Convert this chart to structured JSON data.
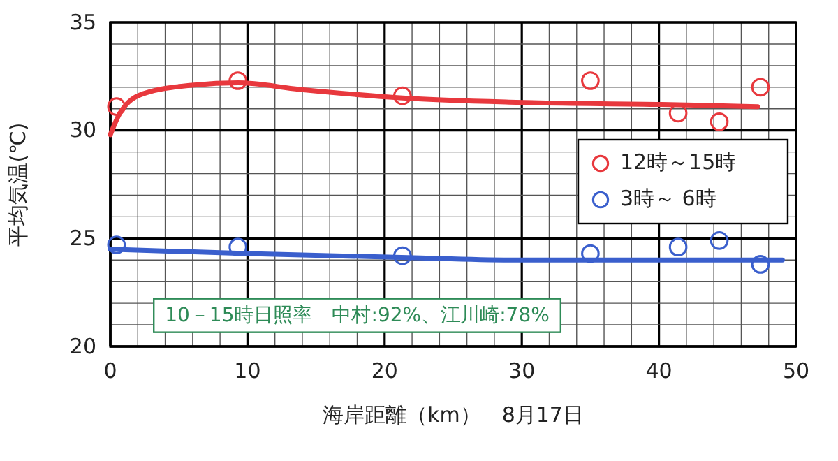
{
  "chart_data": {
    "type": "scatter",
    "xlabel": "海岸距離（km）　8月17日",
    "ylabel": "平均気温(℃)",
    "xlim": [
      0,
      50
    ],
    "ylim": [
      20,
      35
    ],
    "xticks": [
      0,
      {
        "value": 2,
        "label": null
      },
      {
        "value": 4,
        "label": null
      },
      {
        "value": 6,
        "label": null
      },
      {
        "value": 8,
        "label": null
      },
      10,
      {
        "value": 12,
        "label": null
      },
      {
        "value": 14,
        "label": null
      },
      {
        "value": 16,
        "label": null
      },
      {
        "value": 18,
        "label": null
      },
      20,
      {
        "value": 22,
        "label": null
      },
      {
        "value": 24,
        "label": null
      },
      {
        "value": 26,
        "label": null
      },
      {
        "value": 28,
        "label": null
      },
      30,
      {
        "value": 32,
        "label": null
      },
      {
        "value": 34,
        "label": null
      },
      {
        "value": 36,
        "label": null
      },
      {
        "value": 38,
        "label": null
      },
      40,
      {
        "value": 42,
        "label": null
      },
      {
        "value": 44,
        "label": null
      },
      {
        "value": 46,
        "label": null
      },
      {
        "value": 48,
        "label": null
      },
      50
    ],
    "yticks": [
      20,
      {
        "value": 21,
        "label": null
      },
      {
        "value": 22,
        "label": null
      },
      {
        "value": 23,
        "label": null
      },
      {
        "value": 24,
        "label": null
      },
      25,
      {
        "value": 26,
        "label": null
      },
      {
        "value": 27,
        "label": null
      },
      {
        "value": 28,
        "label": null
      },
      {
        "value": 29,
        "label": null
      },
      30,
      {
        "value": 31,
        "label": null
      },
      {
        "value": 32,
        "label": null
      },
      {
        "value": 33,
        "label": null
      },
      {
        "value": 34,
        "label": null
      },
      35
    ],
    "grid": true,
    "legend": "right",
    "marker": "circle",
    "series": [
      {
        "name": "12時～15時",
        "color": "#e8383d",
        "x": [
          0.45,
          9.3,
          21.3,
          35.0,
          41.4,
          44.4,
          47.4
        ],
        "values": [
          31.1,
          32.3,
          31.6,
          32.3,
          30.8,
          30.4,
          32.0
        ]
      },
      {
        "name": "3時～ 6時",
        "color": "#3a5fcd",
        "x": [
          0.45,
          9.3,
          21.3,
          35.0,
          41.4,
          44.4,
          47.4
        ],
        "values": [
          24.7,
          24.6,
          24.2,
          24.3,
          24.6,
          24.9,
          23.8
        ]
      },
      {
        "type": "line",
        "color": "#e8383d",
        "marker": "none",
        "x": [
          0,
          0.7,
          2.4,
          6.1,
          9.3,
          13.8,
          21.3,
          29.6,
          40.2,
          47.2
        ],
        "values": [
          29.8,
          30.8,
          31.7,
          32.1,
          32.2,
          31.9,
          31.5,
          31.3,
          31.2,
          31.1
        ]
      },
      {
        "type": "line",
        "color": "#3a5fcd",
        "marker": "none",
        "x": [
          0,
          10,
          22.6,
          29.6,
          49
        ],
        "values": [
          24.5,
          24.3,
          24.1,
          24.0,
          24.0
        ]
      }
    ],
    "annotations": [
      "10－15時日照率　中村:92%、江川崎:78%"
    ]
  }
}
